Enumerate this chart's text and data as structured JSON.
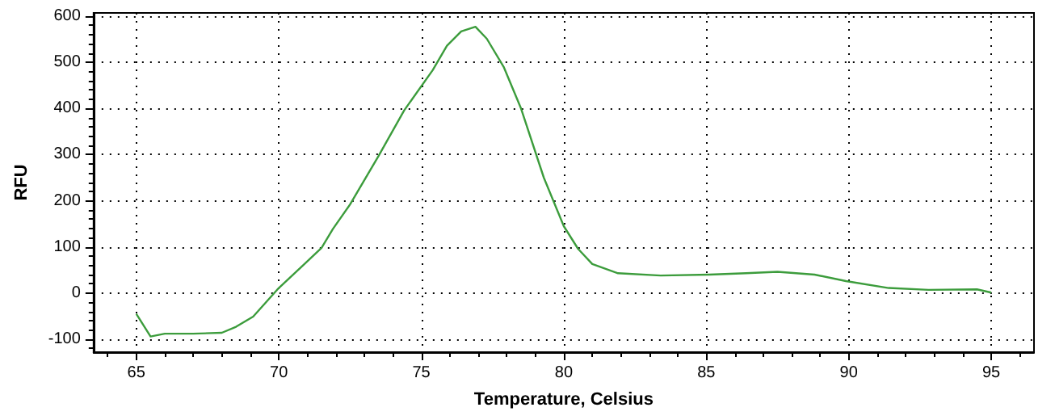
{
  "chart_data": {
    "type": "line",
    "xlabel": "Temperature, Celsius",
    "ylabel": "RFU",
    "xlim": [
      63.5,
      96.5
    ],
    "xticks": [
      65,
      70,
      75,
      80,
      85,
      90,
      95
    ],
    "ylim": [
      -128,
      607
    ],
    "yticks": [
      -100,
      0,
      100,
      200,
      300,
      400,
      500,
      600
    ],
    "grid": true,
    "marker": "none",
    "line_style": "solid",
    "series": [
      {
        "color": "#3c9c3c",
        "x": [
          65,
          65.5,
          66,
          67,
          68,
          68.5,
          69.1,
          70,
          70.9,
          71.5,
          71.9,
          72.5,
          73.5,
          74.4,
          75.4,
          75.9,
          76.4,
          76.9,
          77.3,
          77.9,
          78.5,
          79.3,
          80,
          80.5,
          81,
          81.9,
          83.4,
          85.1,
          86.4,
          87.5,
          88.8,
          89.9,
          91.4,
          92.8,
          94.5,
          95
        ],
        "values": [
          -45,
          -94,
          -88,
          -88,
          -86,
          -73,
          -51,
          11,
          63,
          98,
          139,
          192,
          297,
          396,
          483,
          536,
          567,
          577,
          551,
          489,
          400,
          250,
          145,
          96,
          63,
          43,
          38,
          40,
          43,
          46,
          40,
          26,
          11,
          7,
          8,
          1
        ]
      }
    ]
  }
}
